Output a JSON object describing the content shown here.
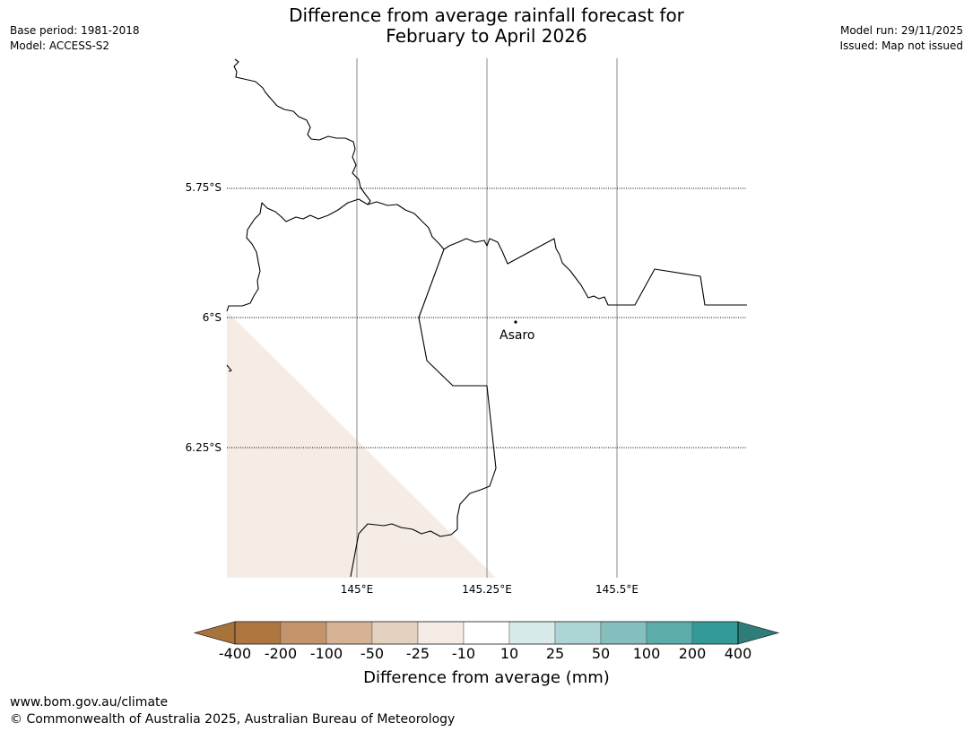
{
  "header": {
    "base_period": "Base period: 1981-2018",
    "model": "Model: ACCESS-S2",
    "model_run": "Model run: 29/11/2025",
    "issued": "Issued: Map not issued",
    "title_line1": "Difference from average rainfall forecast for",
    "title_line2": "February to April 2026"
  },
  "map": {
    "lat_labels": [
      "5.75°S",
      "6°S",
      "6.25°S"
    ],
    "lon_labels": [
      "145°E",
      "145.25°E",
      "145.5°E"
    ],
    "place": {
      "name": "Asaro",
      "icon": "location-dot-icon"
    },
    "shaded_category": "-25 to -10",
    "shaded_color": "#f5ece6"
  },
  "colorbar": {
    "title": "Difference from average (mm)",
    "ticks": [
      "-400",
      "-200",
      "-100",
      "-50",
      "-25",
      "-10",
      "10",
      "25",
      "50",
      "100",
      "200",
      "400"
    ],
    "colors": [
      "#a8733a",
      "#b07640",
      "#c4956b",
      "#d5b394",
      "#e5d1bf",
      "#f5ece6",
      "#ffffff",
      "#d8eaea",
      "#aed5d5",
      "#85c0be",
      "#5bacab",
      "#339a98",
      "#2e7d7a"
    ]
  },
  "footer": {
    "url": "www.bom.gov.au/climate",
    "copyright": "© Commonwealth of Australia 2025, Australian Bureau of Meteorology"
  }
}
